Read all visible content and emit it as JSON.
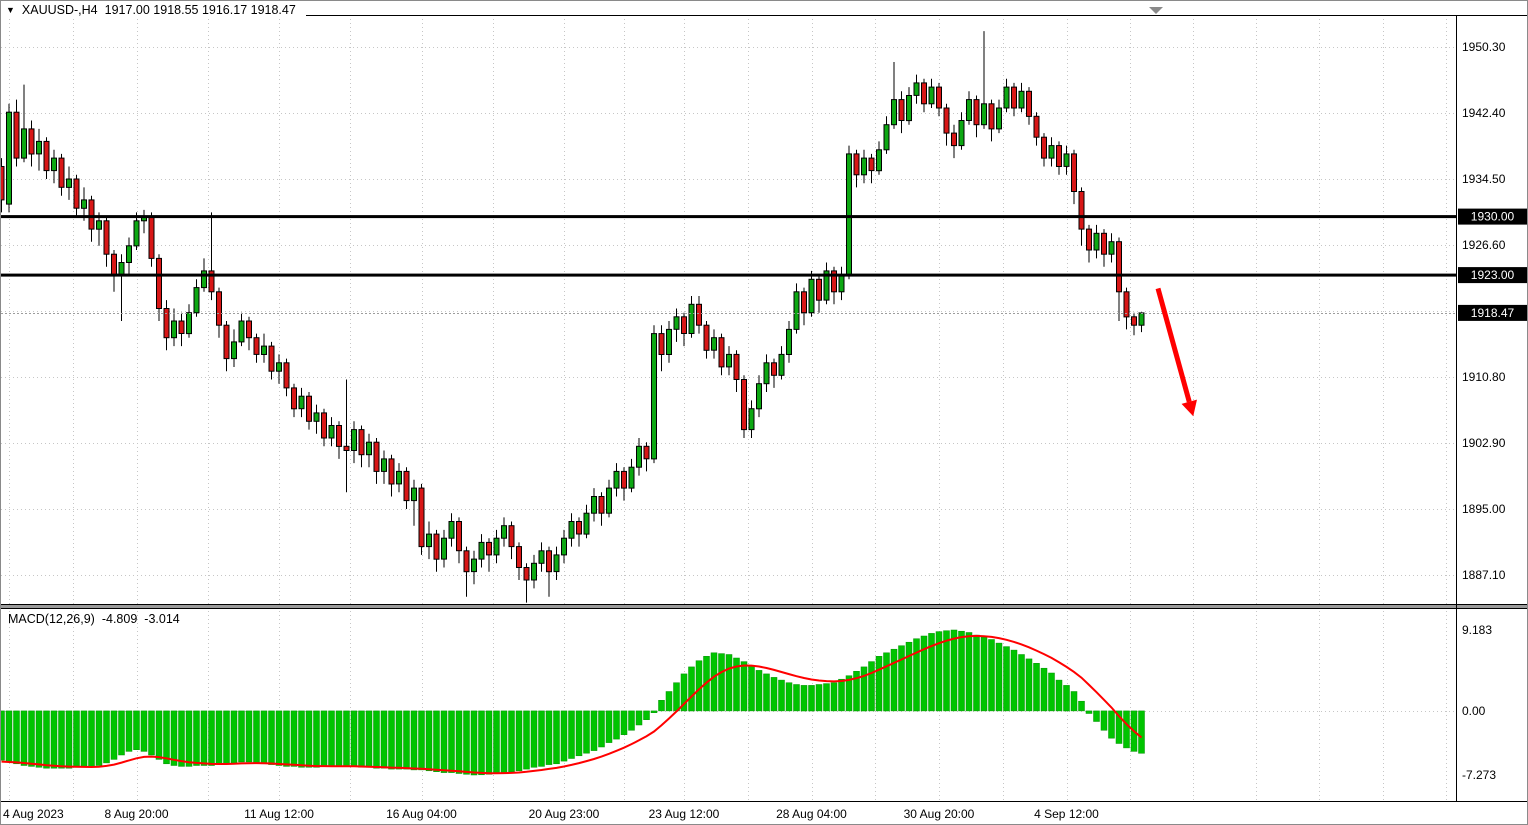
{
  "window": {
    "symbol_marker": "▼",
    "title_symbol": "XAUUSD-,H4",
    "title_ohlc": "1917.00 1918.55 1916.17 1918.47"
  },
  "chart_data": {
    "type": "candlestick",
    "symbol": "XAUUSD",
    "timeframe": "H4",
    "ohlc_display": {
      "open": "1917.00",
      "high": "1918.55",
      "low": "1916.17",
      "close": "1918.47"
    },
    "price_axis": {
      "grid_values": [
        1950.3,
        1942.4,
        1934.5,
        1926.6,
        1918.7,
        1910.8,
        1902.9,
        1895.0,
        1887.1
      ],
      "labels": [
        {
          "text": "1950.30",
          "value": 1950.3
        },
        {
          "text": "1942.40",
          "value": 1942.4
        },
        {
          "text": "1934.50",
          "value": 1934.5
        },
        {
          "text": "1926.60",
          "value": 1926.6
        },
        {
          "text": "1910.80",
          "value": 1910.8
        },
        {
          "text": "1902.90",
          "value": 1902.9
        },
        {
          "text": "1895.00",
          "value": 1895.0
        },
        {
          "text": "1887.10",
          "value": 1887.1
        }
      ]
    },
    "levels": [
      {
        "text": "1930.00",
        "value": 1930.0
      },
      {
        "text": "1923.00",
        "value": 1923.0
      }
    ],
    "current_price": {
      "text": "1918.47",
      "value": 1918.47
    },
    "time_axis": {
      "ticks": [
        {
          "label": "4 Aug 2023",
          "bar": 1
        },
        {
          "label": "8 Aug 20:00",
          "bar": 18
        },
        {
          "label": "11 Aug 12:00",
          "bar": 37
        },
        {
          "label": "16 Aug 04:00",
          "bar": 56
        },
        {
          "label": "20 Aug 23:00",
          "bar": 75
        },
        {
          "label": "23 Aug 12:00",
          "bar": 91
        },
        {
          "label": "28 Aug 04:00",
          "bar": 108
        },
        {
          "label": "30 Aug 20:00",
          "bar": 125
        },
        {
          "label": "4 Sep 12:00",
          "bar": 142
        }
      ]
    },
    "candles": [
      [
        1936,
        1937,
        1930.5,
        1932
      ],
      [
        1931.5,
        1943.5,
        1930.5,
        1942.5
      ],
      [
        1942.5,
        1944,
        1936,
        1937
      ],
      [
        1937,
        1945.8,
        1936.5,
        1940.5
      ],
      [
        1940.5,
        1941.5,
        1936,
        1937.5
      ],
      [
        1937.5,
        1940.5,
        1935.5,
        1939
      ],
      [
        1939,
        1939.5,
        1934.5,
        1935.5
      ],
      [
        1935.5,
        1938,
        1934,
        1937
      ],
      [
        1937,
        1937.5,
        1932.5,
        1933.5
      ],
      [
        1933.5,
        1936,
        1932,
        1934.5
      ],
      [
        1934.5,
        1935,
        1930,
        1931
      ],
      [
        1931,
        1933.5,
        1929.5,
        1932
      ],
      [
        1932,
        1932.5,
        1927,
        1928.5
      ],
      [
        1928.5,
        1930.5,
        1926.5,
        1929.5
      ],
      [
        1929.5,
        1930,
        1924,
        1925.5
      ],
      [
        1925.5,
        1926,
        1921,
        1923
      ],
      [
        1923,
        1925.5,
        1917.5,
        1924.5
      ],
      [
        1924.5,
        1927.5,
        1923,
        1926.5
      ],
      [
        1926.5,
        1930.5,
        1926,
        1929.5
      ],
      [
        1929.5,
        1930.8,
        1928,
        1930
      ],
      [
        1930,
        1930.5,
        1924,
        1925
      ],
      [
        1925,
        1925.5,
        1917.5,
        1919
      ],
      [
        1919,
        1920,
        1914,
        1915.5
      ],
      [
        1915.5,
        1919,
        1914.5,
        1917.5
      ],
      [
        1917.5,
        1918.5,
        1914.5,
        1916
      ],
      [
        1916,
        1919.5,
        1915.5,
        1918.5
      ],
      [
        1918.5,
        1922.5,
        1918,
        1921.5
      ],
      [
        1921.5,
        1925,
        1921,
        1923.5
      ],
      [
        1923.5,
        1930.5,
        1920,
        1921
      ],
      [
        1921,
        1921.5,
        1915.5,
        1917
      ],
      [
        1917,
        1917.5,
        1911.5,
        1913
      ],
      [
        1913,
        1916.5,
        1912,
        1915
      ],
      [
        1915,
        1918.5,
        1914.5,
        1917.5
      ],
      [
        1917.5,
        1918,
        1914,
        1915.5
      ],
      [
        1915.5,
        1916,
        1912.5,
        1913.5
      ],
      [
        1913.5,
        1916,
        1912.5,
        1914.5
      ],
      [
        1914.5,
        1915,
        1910.5,
        1911.5
      ],
      [
        1911.5,
        1913.5,
        1910,
        1912.5
      ],
      [
        1912.5,
        1913,
        1908.5,
        1909.5
      ],
      [
        1909.5,
        1910,
        1906,
        1907
      ],
      [
        1907,
        1909.5,
        1906,
        1908.5
      ],
      [
        1908.5,
        1909,
        1904.5,
        1905.5
      ],
      [
        1905.5,
        1907.5,
        1904,
        1906.5
      ],
      [
        1906.5,
        1907,
        1902.5,
        1903.5
      ],
      [
        1903.5,
        1906,
        1902.5,
        1905
      ],
      [
        1905,
        1905.5,
        1901,
        1902.5
      ],
      [
        1902.5,
        1910.5,
        1897,
        1902
      ],
      [
        1902,
        1905.5,
        1900.5,
        1904.5
      ],
      [
        1904.5,
        1905,
        1900,
        1901.5
      ],
      [
        1901.5,
        1904,
        1900,
        1903
      ],
      [
        1903,
        1903.5,
        1898,
        1899.5
      ],
      [
        1899.5,
        1902,
        1898,
        1901
      ],
      [
        1901,
        1901.5,
        1896.5,
        1898
      ],
      [
        1898,
        1900.5,
        1897,
        1899.5
      ],
      [
        1899.5,
        1900,
        1895,
        1896
      ],
      [
        1896,
        1898.5,
        1893,
        1897.5
      ],
      [
        1897.5,
        1898,
        1889.5,
        1890.5
      ],
      [
        1890.5,
        1893.5,
        1889,
        1892
      ],
      [
        1892,
        1892.5,
        1887.5,
        1889
      ],
      [
        1889,
        1892.5,
        1888,
        1891.5
      ],
      [
        1891.5,
        1894.5,
        1890.5,
        1893.5
      ],
      [
        1893.5,
        1894,
        1888.5,
        1890
      ],
      [
        1890,
        1890.5,
        1884.5,
        1887.5
      ],
      [
        1887.5,
        1890,
        1886,
        1889
      ],
      [
        1889,
        1892,
        1888,
        1891
      ],
      [
        1891,
        1891.5,
        1887.5,
        1889.5
      ],
      [
        1889.5,
        1892.5,
        1888.5,
        1891.5
      ],
      [
        1891.5,
        1894,
        1890.5,
        1893
      ],
      [
        1893,
        1893.5,
        1889,
        1890.5
      ],
      [
        1890.5,
        1891,
        1886.5,
        1888
      ],
      [
        1888,
        1888.5,
        1883.8,
        1886.5
      ],
      [
        1886.5,
        1889.5,
        1885.5,
        1888.5
      ],
      [
        1888.5,
        1891,
        1887.5,
        1890
      ],
      [
        1890,
        1890.5,
        1884.5,
        1887.5
      ],
      [
        1887.5,
        1890.5,
        1886.5,
        1889.5
      ],
      [
        1889.5,
        1892.5,
        1888.5,
        1891.5
      ],
      [
        1891.5,
        1894.5,
        1890.5,
        1893.5
      ],
      [
        1893.5,
        1894,
        1890.5,
        1892
      ],
      [
        1892,
        1895.5,
        1891.5,
        1894.5
      ],
      [
        1894.5,
        1897.5,
        1893.5,
        1896.5
      ],
      [
        1896.5,
        1897,
        1893,
        1894.5
      ],
      [
        1894.5,
        1898.5,
        1894,
        1897.5
      ],
      [
        1897.5,
        1900.5,
        1896.5,
        1899.5
      ],
      [
        1899.5,
        1900,
        1896,
        1897.5
      ],
      [
        1897.5,
        1901,
        1897,
        1900
      ],
      [
        1900,
        1903.5,
        1899,
        1902.5
      ],
      [
        1902.5,
        1903,
        1899.5,
        1901
      ],
      [
        1901,
        1917,
        1900.5,
        1916
      ],
      [
        1916,
        1917,
        1911.5,
        1913.5
      ],
      [
        1913.5,
        1917.5,
        1912.5,
        1916.5
      ],
      [
        1916.5,
        1919,
        1915,
        1918
      ],
      [
        1918,
        1918.5,
        1914.5,
        1916
      ],
      [
        1916,
        1920.5,
        1915.5,
        1919.5
      ],
      [
        1919.5,
        1920.5,
        1916,
        1917
      ],
      [
        1917,
        1917.5,
        1913,
        1914
      ],
      [
        1914,
        1916.5,
        1913,
        1915.5
      ],
      [
        1915.5,
        1916,
        1911,
        1912
      ],
      [
        1912,
        1914.5,
        1911,
        1913.5
      ],
      [
        1913.5,
        1914,
        1909,
        1910.5
      ],
      [
        1910.5,
        1911,
        1903.5,
        1904.5
      ],
      [
        1904.5,
        1908,
        1903.5,
        1907
      ],
      [
        1907,
        1911,
        1906,
        1910
      ],
      [
        1910,
        1913.5,
        1909,
        1912.5
      ],
      [
        1912.5,
        1913,
        1909.5,
        1911
      ],
      [
        1911,
        1914.5,
        1910.5,
        1913.5
      ],
      [
        1913.5,
        1917.5,
        1912.5,
        1916.5
      ],
      [
        1916.5,
        1922,
        1916,
        1921
      ],
      [
        1921,
        1921.5,
        1917,
        1918.5
      ],
      [
        1918.5,
        1923.5,
        1918,
        1922.5
      ],
      [
        1922.5,
        1923,
        1918.5,
        1920
      ],
      [
        1920,
        1924.5,
        1919.5,
        1923.5
      ],
      [
        1923.5,
        1924,
        1919.5,
        1921
      ],
      [
        1921,
        1924,
        1920,
        1923
      ],
      [
        1923,
        1938.5,
        1922.5,
        1937.5
      ],
      [
        1937.5,
        1938,
        1933.5,
        1935
      ],
      [
        1935,
        1938,
        1934,
        1937
      ],
      [
        1937,
        1937.5,
        1934,
        1935.5
      ],
      [
        1935.5,
        1939,
        1935,
        1938
      ],
      [
        1938,
        1942,
        1937.5,
        1941
      ],
      [
        1941,
        1948.5,
        1940.5,
        1944
      ],
      [
        1944,
        1945,
        1940,
        1941.5
      ],
      [
        1941.5,
        1945.5,
        1941,
        1944.5
      ],
      [
        1944.5,
        1947,
        1943.5,
        1946
      ],
      [
        1946,
        1946.5,
        1942.5,
        1943.5
      ],
      [
        1943.5,
        1946.5,
        1943,
        1945.5
      ],
      [
        1945.5,
        1946,
        1942,
        1943
      ],
      [
        1943,
        1943.5,
        1938.5,
        1940
      ],
      [
        1940,
        1941,
        1937,
        1938.5
      ],
      [
        1938.5,
        1942.5,
        1938,
        1941.5
      ],
      [
        1941.5,
        1945,
        1941,
        1944
      ],
      [
        1944,
        1944.5,
        1939.5,
        1941
      ],
      [
        1941,
        1952.2,
        1940.5,
        1943.5
      ],
      [
        1943.5,
        1944,
        1939,
        1940.5
      ],
      [
        1940.5,
        1944,
        1940,
        1943
      ],
      [
        1943,
        1946.5,
        1942.5,
        1945.5
      ],
      [
        1945.5,
        1946,
        1942,
        1943
      ],
      [
        1943,
        1946,
        1942.5,
        1945
      ],
      [
        1945,
        1945.5,
        1941,
        1942
      ],
      [
        1942,
        1942.5,
        1938.5,
        1939.5
      ],
      [
        1939.5,
        1940,
        1936,
        1937
      ],
      [
        1937,
        1939.5,
        1936,
        1938.5
      ],
      [
        1938.5,
        1939,
        1935,
        1936
      ],
      [
        1936,
        1938.5,
        1935,
        1937.5
      ],
      [
        1937.5,
        1938,
        1931.5,
        1933
      ],
      [
        1933,
        1933.5,
        1926.5,
        1928.5
      ],
      [
        1928.5,
        1929,
        1924.5,
        1926
      ],
      [
        1926,
        1929,
        1925,
        1928
      ],
      [
        1928,
        1928.5,
        1924,
        1925.5
      ],
      [
        1925.5,
        1928,
        1924.5,
        1927
      ],
      [
        1927,
        1927.5,
        1917.5,
        1921
      ],
      [
        1921,
        1921.5,
        1916.5,
        1918
      ],
      [
        1918,
        1918.5,
        1915.8,
        1917
      ],
      [
        1917,
        1918.55,
        1916.17,
        1918.47
      ]
    ],
    "macd": {
      "label": "MACD(12,26,9)",
      "value_text": "-4.809",
      "signal_text": "-3.014",
      "scale": {
        "max": 9.183,
        "min": -7.273,
        "labels": [
          {
            "text": "9.183",
            "value": 9.183
          },
          {
            "text": "0.00",
            "value": 0
          },
          {
            "text": "-7.273",
            "value": -7.273
          }
        ]
      },
      "histogram": [
        -5.6,
        -5.8,
        -6.0,
        -6.2,
        -6.3,
        -6.4,
        -6.5,
        -6.5,
        -6.5,
        -6.5,
        -6.4,
        -6.4,
        -6.4,
        -6.2,
        -5.9,
        -5.5,
        -5.0,
        -4.6,
        -4.4,
        -4.6,
        -5.0,
        -5.5,
        -6.0,
        -6.2,
        -6.3,
        -6.3,
        -6.2,
        -6.2,
        -6.2,
        -6.1,
        -6.0,
        -5.9,
        -5.8,
        -5.8,
        -5.9,
        -6.0,
        -6.1,
        -6.2,
        -6.3,
        -6.3,
        -6.4,
        -6.4,
        -6.4,
        -6.3,
        -6.3,
        -6.3,
        -6.3,
        -6.3,
        -6.4,
        -6.4,
        -6.5,
        -6.5,
        -6.6,
        -6.6,
        -6.6,
        -6.7,
        -6.7,
        -6.8,
        -6.9,
        -7.0,
        -7.0,
        -7.1,
        -7.2,
        -7.273,
        -7.25,
        -7.2,
        -7.1,
        -7.0,
        -6.9,
        -6.8,
        -6.6,
        -6.4,
        -6.3,
        -6.1,
        -6.0,
        -5.7,
        -5.4,
        -5.1,
        -4.8,
        -4.5,
        -4.1,
        -3.6,
        -3.2,
        -2.7,
        -2.2,
        -1.6,
        -1.0,
        -0.2,
        1.2,
        2.2,
        3.2,
        4.2,
        5.0,
        5.7,
        6.2,
        6.6,
        6.5,
        6.4,
        6.0,
        5.6,
        5.1,
        4.6,
        4.2,
        3.8,
        3.5,
        3.2,
        3.0,
        2.9,
        2.9,
        3.0,
        3.1,
        3.2,
        3.6,
        4.0,
        4.5,
        5.0,
        5.6,
        6.2,
        6.6,
        7.0,
        7.4,
        7.8,
        8.2,
        8.5,
        8.8,
        9.0,
        9.1,
        9.183,
        9.05,
        8.9,
        8.6,
        8.35,
        8.1,
        7.7,
        7.3,
        6.9,
        6.4,
        5.9,
        5.4,
        4.85,
        4.3,
        3.5,
        2.9,
        2.2,
        1.1,
        -0.3,
        -1.2,
        -2.2,
        -3.1,
        -3.7,
        -4.2,
        -4.6,
        -4.809
      ],
      "signal": [
        -5.75,
        -5.8,
        -5.84,
        -5.91,
        -5.99,
        -6.07,
        -6.16,
        -6.23,
        -6.28,
        -6.32,
        -6.34,
        -6.35,
        -6.36,
        -6.33,
        -6.24,
        -6.09,
        -5.87,
        -5.62,
        -5.38,
        -5.22,
        -5.18,
        -5.24,
        -5.39,
        -5.55,
        -5.7,
        -5.82,
        -5.9,
        -5.96,
        -6.01,
        -6.03,
        -6.02,
        -6.0,
        -5.96,
        -5.93,
        -5.92,
        -5.94,
        -5.97,
        -6.02,
        -6.07,
        -6.12,
        -6.17,
        -6.22,
        -6.26,
        -6.26,
        -6.27,
        -6.28,
        -6.28,
        -6.28,
        -6.31,
        -6.33,
        -6.36,
        -6.39,
        -6.43,
        -6.46,
        -6.49,
        -6.53,
        -6.57,
        -6.61,
        -6.67,
        -6.74,
        -6.79,
        -6.85,
        -6.92,
        -6.99,
        -7.04,
        -7.08,
        -7.08,
        -7.06,
        -7.03,
        -6.99,
        -6.91,
        -6.81,
        -6.7,
        -6.58,
        -6.47,
        -6.31,
        -6.13,
        -5.92,
        -5.7,
        -5.46,
        -5.19,
        -4.87,
        -4.53,
        -4.17,
        -3.77,
        -3.34,
        -2.87,
        -2.34,
        -1.63,
        -0.86,
        -0.05,
        0.8,
        1.64,
        2.45,
        3.2,
        3.88,
        4.41,
        4.8,
        5.04,
        5.15,
        5.14,
        5.04,
        4.87,
        4.65,
        4.42,
        4.18,
        3.94,
        3.73,
        3.57,
        3.45,
        3.38,
        3.35,
        3.4,
        3.52,
        3.71,
        3.97,
        4.3,
        4.68,
        5.06,
        5.45,
        5.84,
        6.23,
        6.62,
        7.0,
        7.36,
        7.69,
        7.97,
        8.21,
        8.38,
        8.48,
        8.51,
        8.48,
        8.4,
        8.26,
        8.07,
        7.83,
        7.55,
        7.22,
        6.85,
        6.45,
        6.02,
        5.52,
        4.99,
        4.43,
        3.77,
        2.95,
        2.12,
        1.26,
        0.39,
        -0.6,
        -1.5,
        -2.3,
        -3.014
      ]
    },
    "arrow": {
      "from": {
        "bar": 154.2,
        "price": 1921.4
      },
      "to": {
        "bar": 158.9,
        "price": 1906.1
      }
    },
    "colors": {
      "bull": "#0da813",
      "bear": "#d81717",
      "wick": "#000000",
      "histogram": "#00c400",
      "histogram_edge": "#009100",
      "signal_line": "#ff0000",
      "level_line": "#000000",
      "grid": "#c6c6c6",
      "current_price_line": "#9c9c9c",
      "arrow": "#ff0000",
      "axis_text": "#000000",
      "tag_bg": "#000000",
      "tag_text": "#ffffff"
    }
  }
}
